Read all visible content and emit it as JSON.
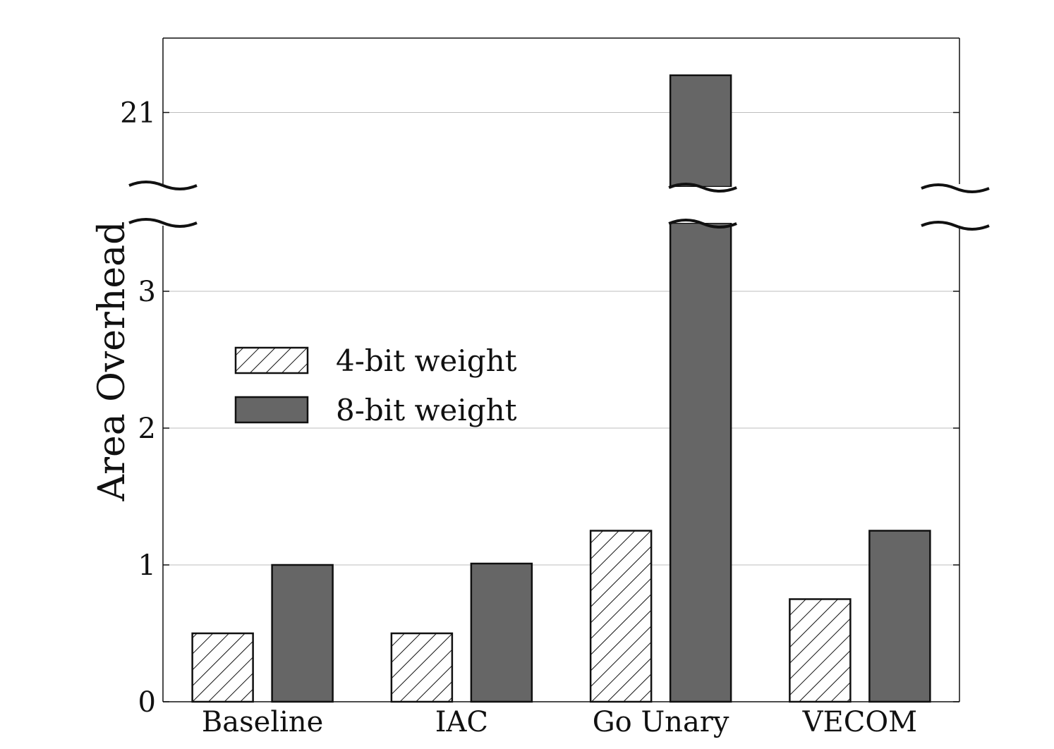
{
  "chart_data": {
    "type": "bar",
    "title": "",
    "xlabel": "",
    "ylabel": "Area Overhead",
    "categories": [
      "Baseline",
      "IAC",
      "Go Unary",
      "VECOM"
    ],
    "series": [
      {
        "name": "4-bit weight",
        "values": [
          0.5,
          0.5,
          1.25,
          0.75
        ],
        "pattern": "hatch"
      },
      {
        "name": "8-bit weight",
        "values": [
          1.0,
          1.01,
          21.25,
          1.25
        ],
        "color": "#666666"
      }
    ],
    "y_ticks": [
      "0",
      "1",
      "2",
      "3",
      "21"
    ],
    "y_segments": [
      {
        "range": [
          0,
          3.5
        ]
      },
      {
        "range": [
          20.5,
          21.5
        ]
      }
    ],
    "y_break": true,
    "grid": "horizontal",
    "legend": "center-left"
  }
}
